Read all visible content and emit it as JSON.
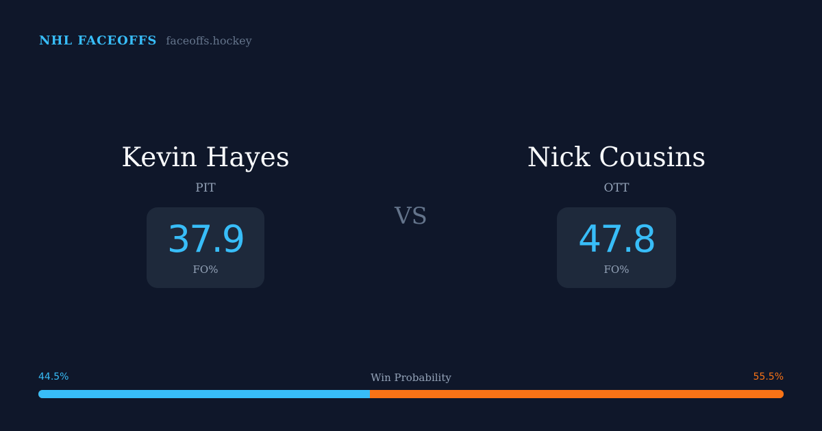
{
  "brand": {
    "title": "NHL FACEOFFS",
    "site": "faceoffs.hockey"
  },
  "players": [
    {
      "name": "Kevin Hayes",
      "team": "PIT",
      "fo_pct": "37.9",
      "fo_label": "FO%"
    },
    {
      "name": "Nick Cousins",
      "team": "OTT",
      "fo_pct": "47.8",
      "fo_label": "FO%"
    }
  ],
  "vs": "VS",
  "win_probability": {
    "label": "Win Probability",
    "left": "44.5%",
    "right": "55.5%",
    "left_value": 44.5,
    "right_value": 55.5,
    "colors": {
      "left": "#38bdf8",
      "right": "#f97316"
    }
  }
}
